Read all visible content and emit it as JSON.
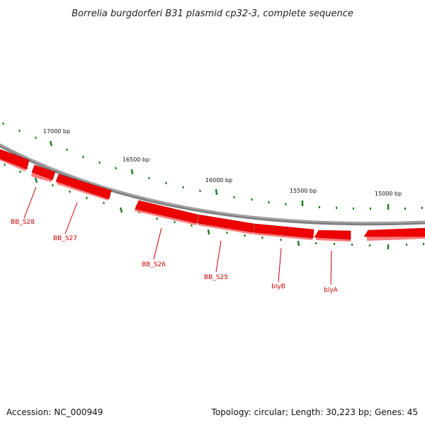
{
  "title": "Borrelia burgdorferi B31 plasmid cp32-3, complete sequence",
  "colors": {
    "backbone": "#8a8a8a",
    "gene_fill": "#ee0000",
    "gene_shadow": "#ff7b7b",
    "tick": "#1a7a1a",
    "label": "#cc0000"
  },
  "scale_labels": [
    "17000 bp",
    "16500 bp",
    "16000 bp",
    "15500 bp",
    "15000 bp"
  ],
  "genes": [
    {
      "name": "BB_S28"
    },
    {
      "name": "BB_S27"
    },
    {
      "name": "BB_S26"
    },
    {
      "name": "BB_S25"
    },
    {
      "name": "blyB"
    },
    {
      "name": "blyA"
    }
  ],
  "footer": {
    "accession": "Accession: NC_000949",
    "summary": "Topology: circular; Length: 30,223 bp; Genes: 45"
  }
}
